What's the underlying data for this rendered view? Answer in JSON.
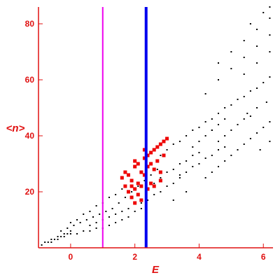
{
  "chart_data": {
    "type": "scatter",
    "xlabel": "<n>",
    "xlabel_axis": "E",
    "ylabel": "<n>",
    "axis_titles": {
      "x": "E",
      "y": "<n>"
    },
    "xlim": [
      -1.0,
      6.3
    ],
    "ylim": [
      0,
      86
    ],
    "x_ticks": [
      0,
      2,
      4,
      6
    ],
    "y_ticks": [
      20,
      40,
      60,
      80
    ],
    "grid": false,
    "colors": {
      "axis": "#e01010",
      "black_points": "#000000",
      "red_points": "#ee0000",
      "magenta_line": "#ee00ee",
      "blue_line": "#0000ee"
    },
    "vertical_lines": [
      {
        "x": 1.0,
        "color": "#ee00ee"
      },
      {
        "x": 2.35,
        "color": "#0000ee"
      }
    ],
    "series": [
      {
        "color": "#000000",
        "points": [
          [
            -0.9,
            1
          ],
          [
            -0.8,
            2
          ],
          [
            -0.7,
            2
          ],
          [
            -0.6,
            3
          ],
          [
            -0.5,
            3
          ],
          [
            -0.4,
            4
          ],
          [
            -0.3,
            4
          ],
          [
            -0.2,
            5
          ],
          [
            -0.1,
            5
          ],
          [
            0.0,
            6
          ],
          [
            -0.6,
            2
          ],
          [
            -0.4,
            3
          ],
          [
            -0.2,
            4
          ],
          [
            0.0,
            5
          ],
          [
            0.2,
            5
          ],
          [
            0.4,
            6
          ],
          [
            0.6,
            6
          ],
          [
            0.8,
            7
          ],
          [
            1.0,
            7
          ],
          [
            -0.3,
            6
          ],
          [
            -0.1,
            7
          ],
          [
            0.1,
            8
          ],
          [
            0.3,
            9
          ],
          [
            0.5,
            10
          ],
          [
            0.7,
            11
          ],
          [
            0.9,
            12
          ],
          [
            1.1,
            13
          ],
          [
            1.3,
            14
          ],
          [
            0.0,
            9
          ],
          [
            0.2,
            10
          ],
          [
            0.4,
            12
          ],
          [
            0.6,
            13
          ],
          [
            0.8,
            15
          ],
          [
            1.0,
            16
          ],
          [
            1.2,
            18
          ],
          [
            1.4,
            19
          ],
          [
            1.6,
            21
          ],
          [
            0.6,
            8
          ],
          [
            0.8,
            9
          ],
          [
            1.0,
            10
          ],
          [
            1.2,
            11
          ],
          [
            1.4,
            12
          ],
          [
            1.6,
            13
          ],
          [
            1.8,
            14
          ],
          [
            1.2,
            8
          ],
          [
            1.4,
            9
          ],
          [
            1.6,
            10
          ],
          [
            1.8,
            11
          ],
          [
            2.0,
            13
          ],
          [
            2.2,
            14
          ],
          [
            1.5,
            16
          ],
          [
            1.7,
            18
          ],
          [
            1.9,
            20
          ],
          [
            2.1,
            22
          ],
          [
            2.3,
            24
          ],
          [
            2.5,
            26
          ],
          [
            2.7,
            28
          ],
          [
            2.2,
            16
          ],
          [
            2.4,
            17
          ],
          [
            2.6,
            19
          ],
          [
            2.8,
            20
          ],
          [
            3.0,
            22
          ],
          [
            3.2,
            23
          ],
          [
            3.4,
            25
          ],
          [
            2.4,
            21
          ],
          [
            2.6,
            23
          ],
          [
            2.8,
            25
          ],
          [
            3.0,
            27
          ],
          [
            3.2,
            28
          ],
          [
            3.4,
            30
          ],
          [
            3.6,
            31
          ],
          [
            3.8,
            33
          ],
          [
            4.0,
            34
          ],
          [
            2.8,
            33
          ],
          [
            3.0,
            35
          ],
          [
            3.2,
            37
          ],
          [
            3.4,
            38
          ],
          [
            3.6,
            40
          ],
          [
            3.8,
            42
          ],
          [
            4.0,
            43
          ],
          [
            4.2,
            45
          ],
          [
            4.4,
            46
          ],
          [
            4.6,
            48
          ],
          [
            4.8,
            50
          ],
          [
            5.0,
            51
          ],
          [
            5.2,
            53
          ],
          [
            5.4,
            54
          ],
          [
            5.6,
            56
          ],
          [
            5.8,
            57
          ],
          [
            6.0,
            59
          ],
          [
            6.2,
            61
          ],
          [
            3.4,
            26
          ],
          [
            3.6,
            27
          ],
          [
            3.8,
            29
          ],
          [
            4.0,
            30
          ],
          [
            4.2,
            32
          ],
          [
            4.4,
            33
          ],
          [
            4.6,
            35
          ],
          [
            4.8,
            36
          ],
          [
            3.8,
            36
          ],
          [
            4.0,
            38
          ],
          [
            4.2,
            40
          ],
          [
            4.4,
            42
          ],
          [
            4.6,
            44
          ],
          [
            4.8,
            46
          ],
          [
            4.2,
            25
          ],
          [
            4.4,
            27
          ],
          [
            4.6,
            29
          ],
          [
            4.8,
            31
          ],
          [
            5.0,
            33
          ],
          [
            5.2,
            35
          ],
          [
            5.4,
            37
          ],
          [
            5.6,
            39
          ],
          [
            5.8,
            41
          ],
          [
            6.0,
            43
          ],
          [
            6.2,
            45
          ],
          [
            4.6,
            38
          ],
          [
            4.8,
            40
          ],
          [
            5.0,
            42
          ],
          [
            5.2,
            44
          ],
          [
            5.4,
            46
          ],
          [
            5.6,
            47
          ],
          [
            4.2,
            55
          ],
          [
            4.6,
            60
          ],
          [
            5.0,
            64
          ],
          [
            5.4,
            68
          ],
          [
            5.8,
            72
          ],
          [
            6.2,
            76
          ],
          [
            4.6,
            66
          ],
          [
            5.0,
            70
          ],
          [
            5.4,
            74
          ],
          [
            5.8,
            78
          ],
          [
            6.2,
            82
          ],
          [
            5.4,
            62
          ],
          [
            5.8,
            66
          ],
          [
            6.2,
            70
          ],
          [
            5.6,
            80
          ],
          [
            6.0,
            84
          ],
          [
            6.2,
            86
          ],
          [
            5.5,
            48
          ],
          [
            5.8,
            50
          ],
          [
            6.1,
            52
          ],
          [
            5.9,
            35
          ],
          [
            6.2,
            38
          ],
          [
            4.4,
            42
          ],
          [
            3.6,
            20
          ],
          [
            3.2,
            17
          ]
        ]
      },
      {
        "color": "#ee0000",
        "points": [
          [
            1.7,
            27
          ],
          [
            1.8,
            26
          ],
          [
            1.9,
            22
          ],
          [
            1.9,
            24
          ],
          [
            2.0,
            29
          ],
          [
            2.0,
            31
          ],
          [
            2.1,
            30
          ],
          [
            2.1,
            23
          ],
          [
            2.2,
            27
          ],
          [
            2.3,
            32
          ],
          [
            2.3,
            26
          ],
          [
            2.4,
            33
          ],
          [
            2.4,
            29
          ],
          [
            2.5,
            34
          ],
          [
            2.5,
            30
          ],
          [
            2.6,
            35
          ],
          [
            2.6,
            28
          ],
          [
            2.7,
            36
          ],
          [
            2.7,
            31
          ],
          [
            2.8,
            37
          ],
          [
            2.8,
            27
          ],
          [
            2.9,
            38
          ],
          [
            2.9,
            33
          ],
          [
            3.0,
            39
          ],
          [
            1.8,
            20
          ],
          [
            1.9,
            18
          ],
          [
            2.0,
            21
          ],
          [
            2.1,
            19
          ],
          [
            2.2,
            22
          ],
          [
            2.5,
            23
          ],
          [
            2.6,
            22
          ],
          [
            2.8,
            24
          ],
          [
            1.6,
            25
          ],
          [
            2.3,
            35
          ],
          [
            2.4,
            21
          ],
          [
            1.7,
            22
          ],
          [
            2.0,
            16
          ],
          [
            2.2,
            17
          ]
        ]
      }
    ]
  }
}
